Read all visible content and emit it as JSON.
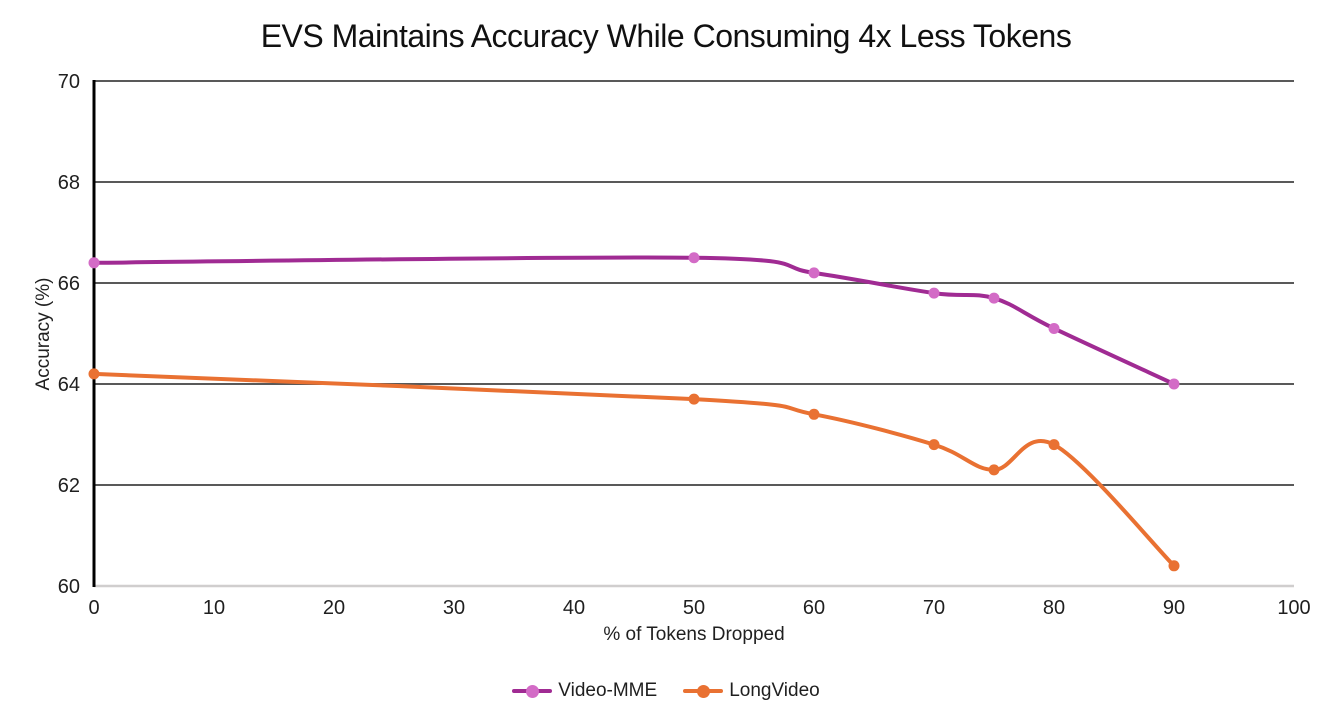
{
  "chart_data": {
    "type": "line",
    "title": "EVS Maintains Accuracy While Consuming 4x Less Tokens",
    "xlabel": "% of Tokens Dropped",
    "ylabel": "Accuracy (%)",
    "xlim": [
      0,
      100
    ],
    "ylim": [
      60,
      70
    ],
    "x_ticks": [
      0,
      10,
      20,
      30,
      40,
      50,
      60,
      70,
      80,
      90,
      100
    ],
    "y_ticks": [
      60,
      62,
      64,
      66,
      68,
      70
    ],
    "grid": "horizontal-only",
    "smooth_lines": true,
    "legend_position": "bottom-center",
    "series": [
      {
        "name": "Video-MME",
        "x": [
          0,
          50,
          60,
          70,
          75,
          80,
          90
        ],
        "values": [
          66.4,
          66.5,
          66.2,
          65.8,
          65.7,
          65.1,
          64.0
        ],
        "line_color": "#A02B93",
        "marker_color": "#D36BC6"
      },
      {
        "name": "LongVideo",
        "x": [
          0,
          50,
          60,
          70,
          75,
          80,
          90
        ],
        "values": [
          64.2,
          63.7,
          63.4,
          62.8,
          62.3,
          62.8,
          60.4
        ],
        "line_color": "#E97132",
        "marker_color": "#E97132"
      }
    ],
    "colors": {
      "gridline": "#595959",
      "baseline": "#D0CECE",
      "axis_line": "#000000",
      "text": "#1f1f1f"
    }
  }
}
